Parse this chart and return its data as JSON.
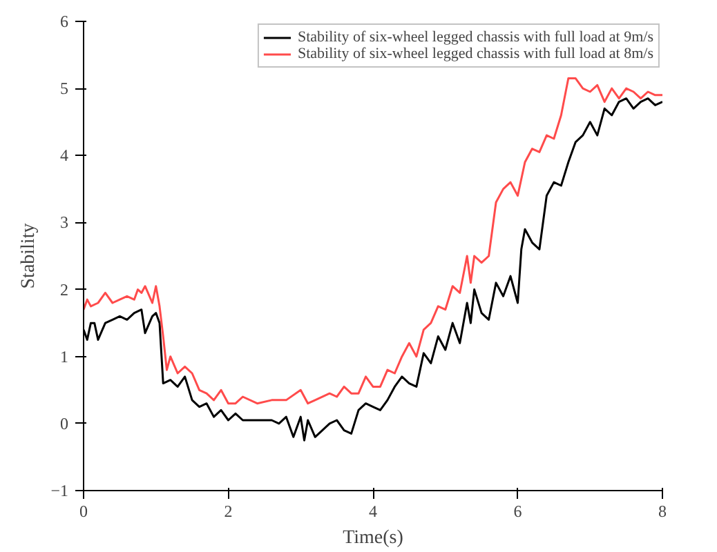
{
  "chart_data": {
    "type": "line",
    "xlabel": "Time(s)",
    "ylabel": "Stability",
    "xlim": [
      0,
      8
    ],
    "ylim": [
      -1,
      6
    ],
    "xticks": [
      0,
      2,
      4,
      6,
      8
    ],
    "yticks": [
      -1,
      0,
      1,
      2,
      3,
      4,
      5,
      6
    ],
    "grid": false,
    "legend": "top right",
    "marker": "none",
    "line_style": "solid",
    "series": [
      {
        "name": "Stability of six-wheel legged chassis with full load at 9m/s",
        "color": "#000000",
        "x": [
          0,
          0.05,
          0.1,
          0.15,
          0.2,
          0.3,
          0.4,
          0.5,
          0.6,
          0.7,
          0.8,
          0.85,
          0.95,
          1.0,
          1.05,
          1.1,
          1.2,
          1.3,
          1.4,
          1.5,
          1.6,
          1.7,
          1.8,
          1.9,
          2.0,
          2.1,
          2.2,
          2.4,
          2.6,
          2.7,
          2.8,
          2.9,
          3.0,
          3.05,
          3.1,
          3.2,
          3.3,
          3.4,
          3.5,
          3.6,
          3.7,
          3.8,
          3.9,
          4.0,
          4.1,
          4.2,
          4.3,
          4.4,
          4.5,
          4.6,
          4.7,
          4.8,
          4.9,
          5.0,
          5.1,
          5.2,
          5.3,
          5.35,
          5.4,
          5.5,
          5.6,
          5.7,
          5.8,
          5.9,
          6.0,
          6.05,
          6.1,
          6.2,
          6.3,
          6.4,
          6.5,
          6.6,
          6.7,
          6.8,
          6.9,
          7.0,
          7.1,
          7.2,
          7.3,
          7.4,
          7.5,
          7.6,
          7.7,
          7.8,
          7.9,
          8.0
        ],
        "values": [
          1.4,
          1.25,
          1.5,
          1.5,
          1.25,
          1.5,
          1.55,
          1.6,
          1.55,
          1.65,
          1.7,
          1.35,
          1.6,
          1.65,
          1.5,
          0.6,
          0.65,
          0.55,
          0.7,
          0.35,
          0.25,
          0.3,
          0.1,
          0.2,
          0.05,
          0.15,
          0.05,
          0.05,
          0.05,
          0.0,
          0.1,
          -0.2,
          0.1,
          -0.25,
          0.05,
          -0.2,
          -0.1,
          0.0,
          0.05,
          -0.1,
          -0.15,
          0.2,
          0.3,
          0.25,
          0.2,
          0.35,
          0.55,
          0.7,
          0.6,
          0.55,
          1.05,
          0.9,
          1.3,
          1.1,
          1.5,
          1.2,
          1.8,
          1.5,
          2.0,
          1.65,
          1.55,
          2.1,
          1.9,
          2.2,
          1.8,
          2.6,
          2.9,
          2.7,
          2.6,
          3.4,
          3.6,
          3.55,
          3.9,
          4.2,
          4.3,
          4.5,
          4.3,
          4.7,
          4.6,
          4.8,
          4.85,
          4.7,
          4.8,
          4.85,
          4.75,
          4.8
        ]
      },
      {
        "name": "Stability of six-wheel legged chassis with full load at 8m/s",
        "color": "#ff4b4b",
        "x": [
          0,
          0.05,
          0.1,
          0.2,
          0.3,
          0.4,
          0.5,
          0.6,
          0.7,
          0.75,
          0.8,
          0.85,
          0.95,
          1.0,
          1.05,
          1.1,
          1.15,
          1.2,
          1.3,
          1.4,
          1.5,
          1.6,
          1.7,
          1.8,
          1.9,
          2.0,
          2.1,
          2.2,
          2.4,
          2.6,
          2.8,
          3.0,
          3.1,
          3.2,
          3.4,
          3.5,
          3.6,
          3.7,
          3.8,
          3.9,
          4.0,
          4.1,
          4.2,
          4.3,
          4.4,
          4.5,
          4.6,
          4.7,
          4.8,
          4.9,
          5.0,
          5.1,
          5.2,
          5.3,
          5.35,
          5.4,
          5.5,
          5.6,
          5.7,
          5.8,
          5.9,
          6.0,
          6.1,
          6.2,
          6.3,
          6.4,
          6.5,
          6.6,
          6.7,
          6.8,
          6.9,
          7.0,
          7.1,
          7.2,
          7.3,
          7.4,
          7.5,
          7.6,
          7.7,
          7.8,
          7.9,
          8.0
        ],
        "values": [
          1.7,
          1.85,
          1.75,
          1.8,
          1.95,
          1.8,
          1.85,
          1.9,
          1.85,
          2.0,
          1.95,
          2.05,
          1.8,
          2.05,
          1.75,
          1.3,
          0.8,
          1.0,
          0.75,
          0.85,
          0.75,
          0.5,
          0.45,
          0.35,
          0.5,
          0.3,
          0.3,
          0.4,
          0.3,
          0.35,
          0.35,
          0.5,
          0.3,
          0.35,
          0.45,
          0.4,
          0.55,
          0.45,
          0.45,
          0.7,
          0.55,
          0.55,
          0.8,
          0.75,
          1.0,
          1.2,
          1.0,
          1.4,
          1.5,
          1.75,
          1.7,
          2.05,
          1.95,
          2.5,
          2.1,
          2.5,
          2.4,
          2.5,
          3.3,
          3.5,
          3.6,
          3.4,
          3.9,
          4.1,
          4.05,
          4.3,
          4.25,
          4.6,
          5.15,
          5.15,
          5.0,
          4.95,
          5.05,
          4.8,
          5.0,
          4.85,
          5.0,
          4.95,
          4.85,
          4.95,
          4.9,
          4.9
        ]
      }
    ]
  }
}
